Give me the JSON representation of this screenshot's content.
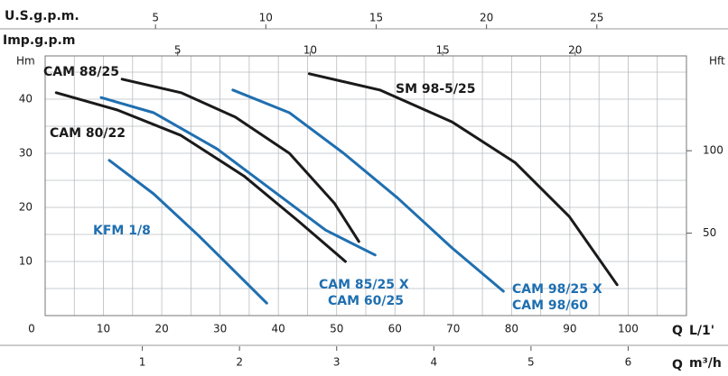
{
  "chart_data": {
    "type": "line",
    "xlim": [
      0,
      110
    ],
    "xticks": [
      0,
      10,
      20,
      30,
      40,
      50,
      60,
      70,
      80,
      90,
      100
    ],
    "xminor": [
      5,
      15,
      25,
      35,
      45,
      55,
      65,
      75,
      85,
      95,
      105
    ],
    "x_label": "Q",
    "x_unit": "L/1'",
    "ylim": [
      0,
      48
    ],
    "yticks": [
      10,
      20,
      30,
      40
    ],
    "yminor": [
      5,
      15,
      25,
      35,
      45
    ],
    "y_label": "Hm",
    "y2lim": [
      0,
      157.5
    ],
    "y2ticks": [
      50,
      100
    ],
    "y2_label": "Hft",
    "usgpm": {
      "label": "U.S.g.p.m.",
      "lim": [
        0,
        29.06
      ],
      "ticks": [
        5,
        10,
        15,
        20,
        25
      ]
    },
    "impgpm": {
      "label": "Imp.g.p.m",
      "lim": [
        0,
        24.2
      ],
      "ticks": [
        5,
        10,
        15,
        20
      ]
    },
    "m3h": {
      "label": "Q",
      "unit": "m³/h",
      "lim": [
        0,
        6.6
      ],
      "ticks": [
        1,
        2,
        3,
        4,
        5,
        6
      ]
    },
    "grid": true,
    "series": [
      {
        "labels": [
          "CAM 88/25"
        ],
        "color": "#1a1a1a",
        "x": [
          13.2,
          23.3,
          32.6,
          41.9,
          49.6,
          53.8
        ],
        "values": [
          43.7,
          41.2,
          36.7,
          30,
          20.8,
          13.7
        ]
      },
      {
        "labels": [
          "CAM 80/22"
        ],
        "color": "#1a1a1a",
        "x": [
          1.9,
          12.4,
          23.3,
          34.1,
          43.4,
          51.5
        ],
        "values": [
          41.2,
          38,
          33.3,
          25.8,
          17.5,
          10
        ]
      },
      {
        "labels": [
          "CAM 85/25 X",
          "CAM 60/25"
        ],
        "color": "#1f6fb0",
        "x": [
          9.6,
          18.6,
          29.5,
          38.8,
          48.1,
          56.6
        ],
        "values": [
          40.3,
          37.5,
          30.8,
          23.3,
          15.8,
          11.2
        ]
      },
      {
        "labels": [
          "SM 98-5/25"
        ],
        "color": "#1a1a1a",
        "x": [
          45.3,
          57.4,
          69.8,
          80.6,
          89.9,
          98.1
        ],
        "values": [
          44.7,
          41.7,
          35.8,
          28.3,
          18.3,
          5.7
        ]
      },
      {
        "labels": [
          "CAM 98/25 X",
          "CAM 98/60"
        ],
        "color": "#1f6fb0",
        "x": [
          32.2,
          41.9,
          51.2,
          60.5,
          69.8,
          78.6
        ],
        "values": [
          41.7,
          37.5,
          30,
          21.7,
          12.5,
          4.5
        ]
      },
      {
        "labels": [
          "KFM 1/8"
        ],
        "color": "#1f6fb0",
        "x": [
          11,
          18.6,
          26.4,
          38
        ],
        "values": [
          28.7,
          22.5,
          14.7,
          2.3
        ]
      }
    ]
  }
}
